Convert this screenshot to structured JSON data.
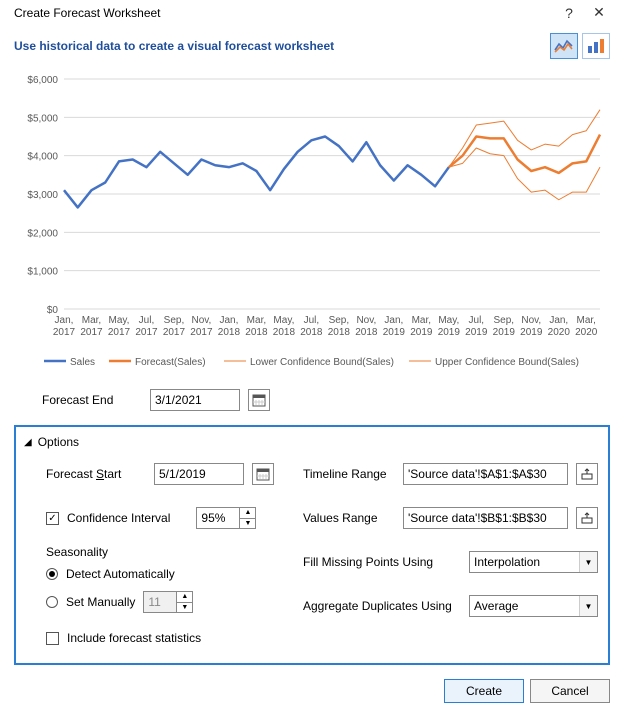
{
  "window": {
    "title": "Create Forecast Worksheet",
    "help_glyph": "?",
    "close_glyph": "✕"
  },
  "subtitle": "Use historical data to create a visual forecast worksheet",
  "chart_type_buttons": {
    "line_selected": true,
    "column_selected": false
  },
  "chart": {
    "type": "line",
    "background_color": "#ffffff",
    "grid_color": "#d9d9d9",
    "axis_text_color": "#595959",
    "axis_fontsize": 10,
    "y": {
      "min": 0,
      "max": 6000,
      "step": 1000,
      "ticks": [
        "$0",
        "$1,000",
        "$2,000",
        "$3,000",
        "$4,000",
        "$5,000",
        "$6,000"
      ]
    },
    "x_labels_top": [
      "Jan,",
      "Mar,",
      "May,",
      "Jul,",
      "Sep,",
      "Nov,",
      "Jan,",
      "Mar,",
      "May,",
      "Jul,",
      "Sep,",
      "Nov,",
      "Jan,",
      "Mar,",
      "May,",
      "Jul,",
      "Sep,",
      "Nov,",
      "Jan,",
      "Mar,"
    ],
    "x_labels_bottom": [
      "2017",
      "2017",
      "2017",
      "2017",
      "2017",
      "2017",
      "2018",
      "2018",
      "2018",
      "2018",
      "2018",
      "2018",
      "2019",
      "2019",
      "2019",
      "2019",
      "2019",
      "2019",
      "2020",
      "2020"
    ],
    "series": {
      "sales": {
        "label": "Sales",
        "color": "#4472c4",
        "line_width": 2.5,
        "values": [
          3100,
          2650,
          3100,
          3300,
          3850,
          3900,
          3700,
          4100,
          3800,
          3500,
          3900,
          3750,
          3700,
          3800,
          3600,
          3100,
          3650,
          4100,
          4400,
          4500,
          4250,
          3850,
          4350,
          3750,
          3350,
          3750,
          3500,
          3200,
          3700
        ]
      },
      "forecast": {
        "label": "Forecast(Sales)",
        "color": "#ed7d31",
        "line_width": 2.5,
        "values": [
          3700,
          4000,
          4500,
          4450,
          4450,
          3900,
          3600,
          3700,
          3550,
          3800,
          3850,
          4550
        ]
      },
      "lower": {
        "label": "Lower Confidence Bound(Sales)",
        "color": "#ed7d31",
        "line_width": 1,
        "values": [
          3700,
          3800,
          4200,
          4050,
          4000,
          3400,
          3050,
          3100,
          2850,
          3050,
          3050,
          3700
        ]
      },
      "upper": {
        "label": "Upper Confidence Bound(Sales)",
        "color": "#ed7d31",
        "line_width": 1,
        "values": [
          3700,
          4200,
          4800,
          4850,
          4900,
          4400,
          4150,
          4300,
          4250,
          4550,
          4650,
          5200
        ]
      }
    },
    "legend_labels": {
      "sales": "Sales",
      "forecast": "Forecast(Sales)",
      "lower": "Lower Confidence Bound(Sales)",
      "upper": "Upper Confidence Bound(Sales)"
    }
  },
  "forecast_end": {
    "label": "Forecast End",
    "value": "3/1/2021"
  },
  "options": {
    "header": "Options",
    "forecast_start": {
      "label": "Forecast Start",
      "value": "5/1/2019"
    },
    "confidence": {
      "label": "Confidence Interval",
      "checked": true,
      "value": "95%"
    },
    "seasonality": {
      "label": "Seasonality",
      "detect_label": "Detect Automatically",
      "manual_label": "Set Manually",
      "mode": "auto",
      "manual_value": "11"
    },
    "include_stats": {
      "label": "Include forecast statistics",
      "checked": false
    },
    "timeline_range": {
      "label": "Timeline Range",
      "value": "'Source data'!$A$1:$A$30"
    },
    "values_range": {
      "label": "Values Range",
      "value": "'Source data'!$B$1:$B$30"
    },
    "fill_missing": {
      "label": "Fill Missing Points Using",
      "value": "Interpolation"
    },
    "aggregate": {
      "label": "Aggregate Duplicates Using",
      "value": "Average"
    }
  },
  "buttons": {
    "create": "Create",
    "cancel": "Cancel"
  }
}
